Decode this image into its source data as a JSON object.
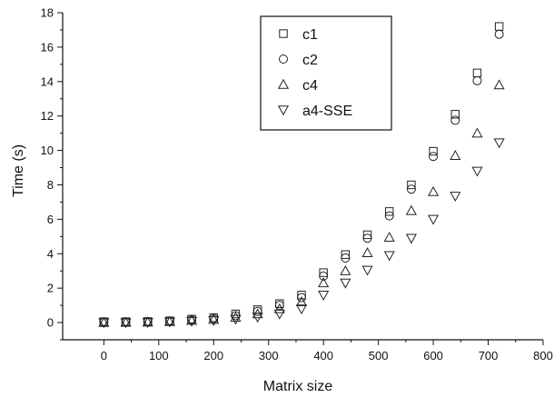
{
  "chart_data": {
    "type": "scatter",
    "title": "",
    "xlabel": "Matrix size",
    "ylabel": "Time (s)",
    "xlim": [
      -75,
      800
    ],
    "ylim": [
      -1,
      18
    ],
    "xticks": [
      0,
      100,
      200,
      300,
      400,
      500,
      600,
      700,
      800
    ],
    "yticks": [
      0,
      2,
      4,
      6,
      8,
      10,
      12,
      14,
      16,
      18
    ],
    "grid": false,
    "legend_position": "top-center",
    "x": [
      0,
      40,
      80,
      120,
      160,
      200,
      240,
      280,
      320,
      360,
      400,
      440,
      480,
      520,
      560,
      600,
      640,
      680,
      720
    ],
    "series": [
      {
        "name": "c1",
        "marker": "square",
        "values": [
          0.05,
          0.05,
          0.06,
          0.1,
          0.2,
          0.28,
          0.5,
          0.75,
          1.1,
          1.6,
          2.9,
          3.95,
          5.1,
          6.45,
          8.0,
          9.95,
          12.1,
          14.5,
          17.2
        ]
      },
      {
        "name": "c2",
        "marker": "circle",
        "values": [
          0.02,
          0.02,
          0.04,
          0.07,
          0.15,
          0.22,
          0.4,
          0.65,
          1.0,
          1.45,
          2.7,
          3.75,
          4.9,
          6.2,
          7.75,
          9.65,
          11.75,
          14.05,
          16.75
        ]
      },
      {
        "name": "c4",
        "marker": "triangle-up",
        "values": [
          0.0,
          0.01,
          0.02,
          0.05,
          0.12,
          0.18,
          0.3,
          0.5,
          0.8,
          1.2,
          2.3,
          3.0,
          4.05,
          4.95,
          6.5,
          7.6,
          9.7,
          11.0,
          13.8
        ]
      },
      {
        "name": "a4-SSE",
        "marker": "triangle-down",
        "values": [
          0.0,
          0.0,
          0.01,
          0.04,
          0.08,
          0.12,
          0.2,
          0.32,
          0.5,
          0.8,
          1.6,
          2.3,
          3.05,
          3.9,
          4.9,
          6.0,
          7.35,
          8.8,
          10.45
        ]
      }
    ]
  }
}
